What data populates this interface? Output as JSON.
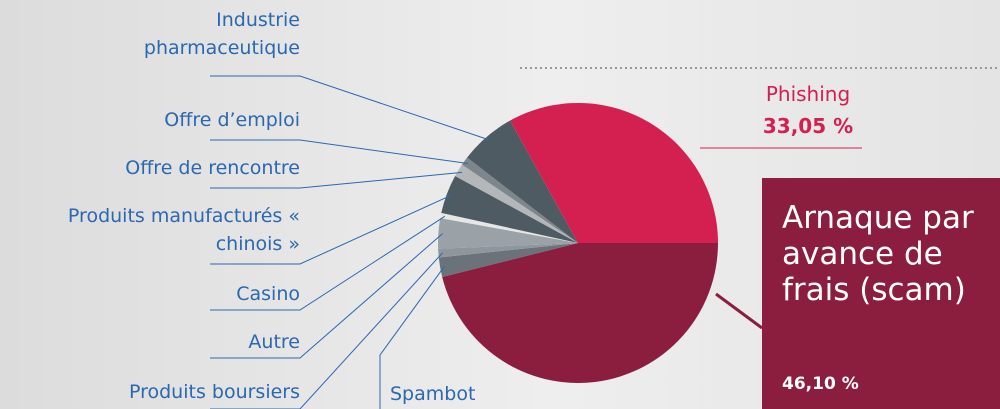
{
  "chart_data": {
    "type": "pie",
    "categories": [
      "Arnaque par avance de frais (scam)",
      "Spambot",
      "Produits boursiers",
      "Autre",
      "Casino",
      "Produits manufacturés « chinois »",
      "Offre de rencontre",
      "Offre d’emploi",
      "Industrie pharmaceutique",
      "Phishing"
    ],
    "values": [
      46.1,
      2.25,
      1.0,
      3.5,
      0.6,
      4.5,
      1.5,
      1.0,
      6.5,
      33.05
    ],
    "value_labels": [
      "46,10 %",
      null,
      null,
      null,
      null,
      null,
      null,
      null,
      null,
      "33,05 %"
    ],
    "colors": [
      "#8b1e3f",
      "#6a7379",
      "#8e979c",
      "#9aa2a7",
      "#e6e6e6",
      "#4f5b63",
      "#b3b7ba",
      "#7d868c",
      "#4f5b63",
      "#d42050"
    ]
  }
}
